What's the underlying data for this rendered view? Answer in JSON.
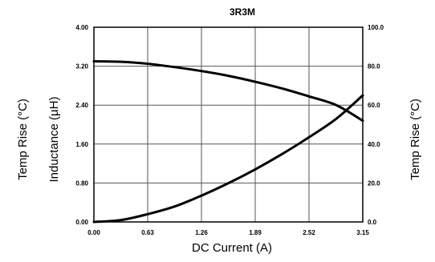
{
  "chart_data": {
    "type": "line",
    "title": "3R3M",
    "xlabel": "DC Current (A)",
    "ylabel_left_outer": "Temp Rise (°C)",
    "ylabel_left_inner": "Inductance (µH)",
    "ylabel_right": "Temp Rise (°C)",
    "xlim": [
      0,
      3.15
    ],
    "ylim_left": [
      0,
      4.0
    ],
    "ylim_right": [
      0,
      100.0
    ],
    "x_ticks": [
      "0.00",
      "0.63",
      "1.26",
      "1.89",
      "2.52",
      "3.15"
    ],
    "y_left_ticks": [
      "0.00",
      "0.80",
      "1.60",
      "2.40",
      "3.20",
      "4.00"
    ],
    "y_right_ticks": [
      "0.0",
      "20.0",
      "40.0",
      "60.0",
      "80.0",
      "100.0"
    ],
    "grid": true,
    "line_color": "#000000",
    "series": [
      {
        "axis": "left",
        "x": [
          0,
          0.32,
          0.63,
          0.95,
          1.26,
          1.58,
          1.89,
          2.21,
          2.52,
          2.84,
          3.15
        ],
        "values": [
          3.3,
          3.29,
          3.25,
          3.18,
          3.1,
          3.0,
          2.88,
          2.74,
          2.58,
          2.4,
          2.08
        ]
      },
      {
        "axis": "right",
        "x": [
          0,
          0.32,
          0.63,
          0.95,
          1.26,
          1.58,
          1.89,
          2.21,
          2.52,
          2.84,
          3.15
        ],
        "values": [
          0,
          1.0,
          4.0,
          8.0,
          13.5,
          20.0,
          27.0,
          35.0,
          43.5,
          53.0,
          65.0
        ]
      }
    ]
  }
}
